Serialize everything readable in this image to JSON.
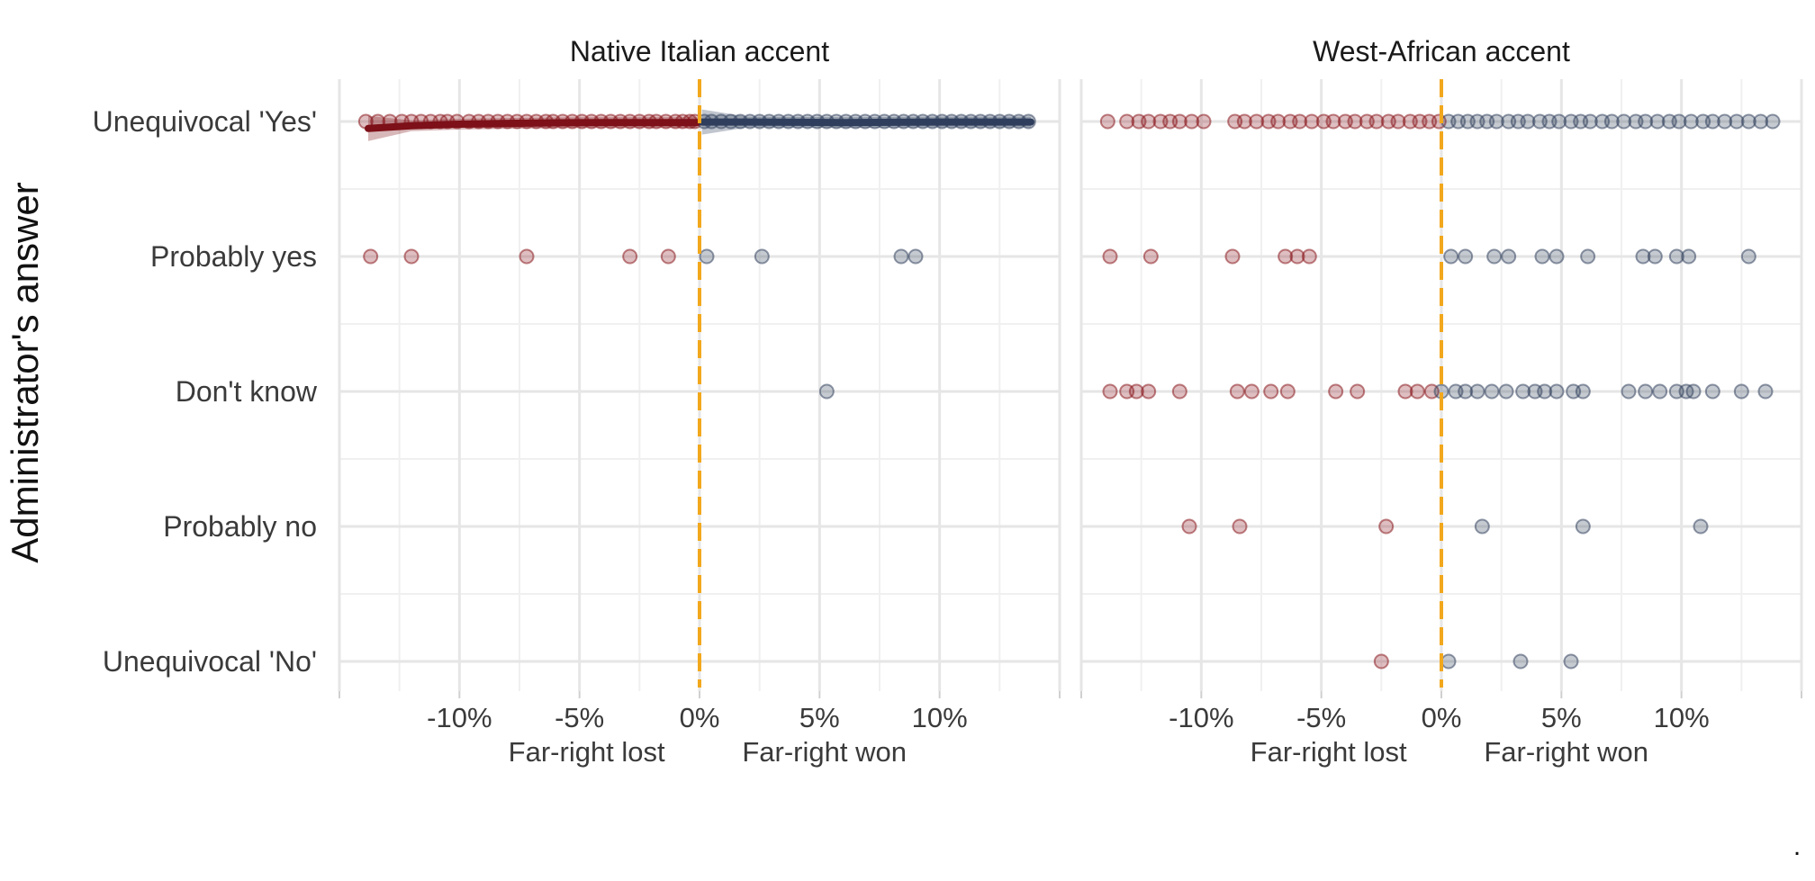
{
  "chart_data": {
    "type": "scatter",
    "ylabel": "Administrator's answer",
    "categories": [
      "Unequivocal 'Yes'",
      "Probably yes",
      "Don't know",
      "Probably no",
      "Unequivocal 'No'"
    ],
    "xlim": [
      -15,
      15
    ],
    "x_ticks": [
      -10,
      -5,
      0,
      5,
      10
    ],
    "x_tick_labels": [
      "-10%",
      "-5%",
      "0%",
      "5%",
      "10%"
    ],
    "x_side_labels": [
      "Far-right lost",
      "Far-right won"
    ],
    "cutoff": 0,
    "trailing_mark": ".",
    "grid": true,
    "colors": {
      "lost": "#8b1a1f",
      "won": "#34445f",
      "cutoff": "#f2a81d",
      "grid": "#e6e6e6",
      "smooth_lost": "#7d1018",
      "smooth_won": "#2f3e5c"
    },
    "panels": [
      {
        "title": "Native Italian accent",
        "smooth": {
          "lost": [
            [
              -13.8,
              -0.13
            ],
            [
              -12,
              -0.08
            ],
            [
              -10,
              -0.05
            ],
            [
              -8,
              -0.035
            ],
            [
              -6,
              -0.025
            ],
            [
              -4,
              -0.02
            ],
            [
              -2,
              -0.02
            ],
            [
              -0.1,
              -0.02
            ]
          ],
          "won": [
            [
              0.1,
              -0.01
            ],
            [
              2,
              -0.01
            ],
            [
              4,
              -0.015
            ],
            [
              6,
              -0.02
            ],
            [
              8,
              -0.015
            ],
            [
              10,
              -0.01
            ],
            [
              12,
              -0.01
            ],
            [
              13.8,
              -0.01
            ]
          ]
        },
        "points": {
          "Unequivocal 'Yes'": [
            -13.9,
            -13.4,
            -12.9,
            -12.4,
            -12.0,
            -11.6,
            -11.2,
            -10.8,
            -10.5,
            -10.1,
            -9.6,
            -9.2,
            -8.8,
            -8.4,
            -8.0,
            -7.6,
            -7.2,
            -6.8,
            -6.4,
            -6.1,
            -5.7,
            -5.3,
            -4.9,
            -4.5,
            -4.1,
            -3.7,
            -3.3,
            -2.9,
            -2.5,
            -2.1,
            -1.8,
            -1.4,
            -1.0,
            -0.7,
            -0.4,
            -0.2,
            0.2,
            0.5,
            0.9,
            1.3,
            1.7,
            2.1,
            2.5,
            2.9,
            3.3,
            3.7,
            4.1,
            4.5,
            4.9,
            5.3,
            5.7,
            6.1,
            6.5,
            6.9,
            7.3,
            7.7,
            8.1,
            8.5,
            8.9,
            9.3,
            9.7,
            10.1,
            10.5,
            10.9,
            11.3,
            11.7,
            12.1,
            12.5,
            12.9,
            13.3,
            13.7
          ],
          "Probably yes": [
            -13.7,
            -12.0,
            -7.2,
            -2.9,
            -1.3,
            0.3,
            2.6,
            8.4,
            9.0
          ],
          "Don't know": [
            5.3
          ],
          "Probably no": [],
          "Unequivocal 'No'": []
        }
      },
      {
        "title": "West-African accent",
        "smooth": null,
        "points": {
          "Unequivocal 'Yes'": [
            -13.9,
            -13.1,
            -12.6,
            -12.2,
            -11.7,
            -11.3,
            -10.9,
            -10.4,
            -9.9,
            -8.6,
            -8.2,
            -7.7,
            -7.2,
            -6.8,
            -6.3,
            -5.9,
            -5.4,
            -4.9,
            -4.5,
            -4.0,
            -3.6,
            -3.1,
            -2.7,
            -2.2,
            -1.8,
            -1.3,
            -0.9,
            -0.5,
            -0.1,
            0.3,
            0.7,
            1.1,
            1.5,
            1.9,
            2.3,
            2.8,
            3.2,
            3.6,
            4.1,
            4.5,
            4.9,
            5.4,
            5.8,
            6.2,
            6.7,
            7.1,
            7.6,
            8.1,
            8.5,
            9.0,
            9.5,
            9.9,
            10.4,
            10.9,
            11.3,
            11.8,
            12.3,
            12.8,
            13.3,
            13.8
          ],
          "Probably yes": [
            -13.8,
            -12.1,
            -8.7,
            -6.5,
            -6.0,
            -5.5,
            0.4,
            1.0,
            2.2,
            2.8,
            4.2,
            4.8,
            6.1,
            8.4,
            8.9,
            9.8,
            10.3,
            12.8
          ],
          "Don't know": [
            -13.8,
            -13.1,
            -12.7,
            -12.2,
            -10.9,
            -8.5,
            -7.9,
            -7.1,
            -6.4,
            -4.4,
            -3.5,
            -1.5,
            -1.0,
            -0.4,
            0.0,
            0.6,
            1.0,
            1.5,
            2.1,
            2.7,
            3.4,
            3.9,
            4.3,
            4.8,
            5.5,
            5.9,
            7.8,
            8.5,
            9.1,
            9.8,
            10.2,
            10.5,
            11.3,
            12.5,
            13.5
          ],
          "Probably no": [
            -10.5,
            -8.4,
            -2.3,
            1.7,
            5.9,
            10.8
          ],
          "Unequivocal 'No'": [
            -2.5,
            0.3,
            3.3,
            5.4
          ]
        }
      }
    ]
  }
}
